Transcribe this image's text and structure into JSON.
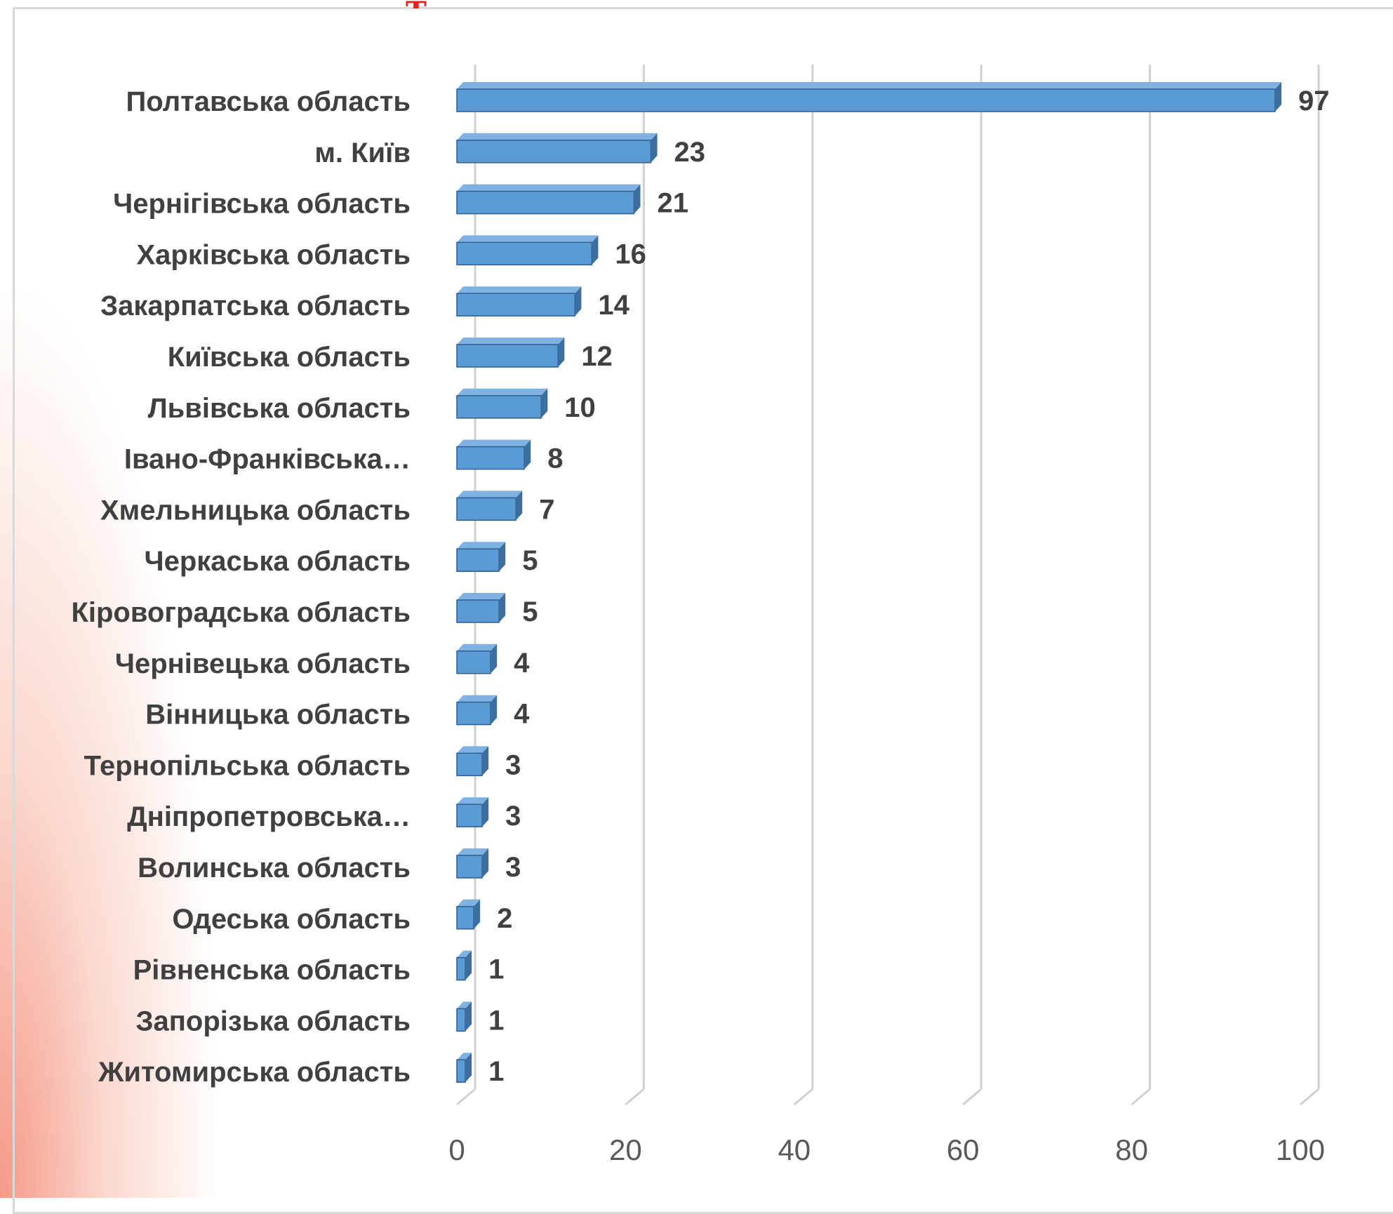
{
  "colors": {
    "bar_front": "#5b9bd5",
    "bar_top": "#7fb2e2",
    "bar_side": "#3a6f9f",
    "bar_edge": "#2e5f8f",
    "grid": "#d0d0d0",
    "label_text": "#404040",
    "tick_text": "#595959",
    "title_accent": "#ee1c1c"
  },
  "chart_data": {
    "type": "bar",
    "orientation": "horizontal",
    "style": "3d",
    "title": "",
    "xlabel": "",
    "ylabel": "",
    "xlim": [
      0,
      100
    ],
    "x_ticks": [
      "0",
      "20",
      "40",
      "60",
      "80",
      "100"
    ],
    "grid": true,
    "legend": "none",
    "categories": [
      "Полтавська область",
      "м. Київ",
      "Чернігівська область",
      "Харківська область",
      "Закарпатська область",
      "Київська область",
      "Львівська область",
      "Івано-Франківська…",
      "Хмельницька область",
      "Черкаська область",
      "Кіровоградська область",
      "Чернівецька область",
      "Вінницька область",
      "Тернопільська область",
      "Дніпропетровська…",
      "Волинська область",
      "Одеська область",
      "Рівненська область",
      "Запорізька область",
      "Житомирська область"
    ],
    "values": [
      97,
      23,
      21,
      16,
      14,
      12,
      10,
      8,
      7,
      5,
      5,
      4,
      4,
      3,
      3,
      3,
      2,
      1,
      1,
      1
    ],
    "data_labels": [
      "97",
      "23",
      "21",
      "16",
      "14",
      "12",
      "10",
      "8",
      "7",
      "5",
      "5",
      "4",
      "4",
      "3",
      "3",
      "3",
      "2",
      "1",
      "1",
      "1"
    ]
  }
}
